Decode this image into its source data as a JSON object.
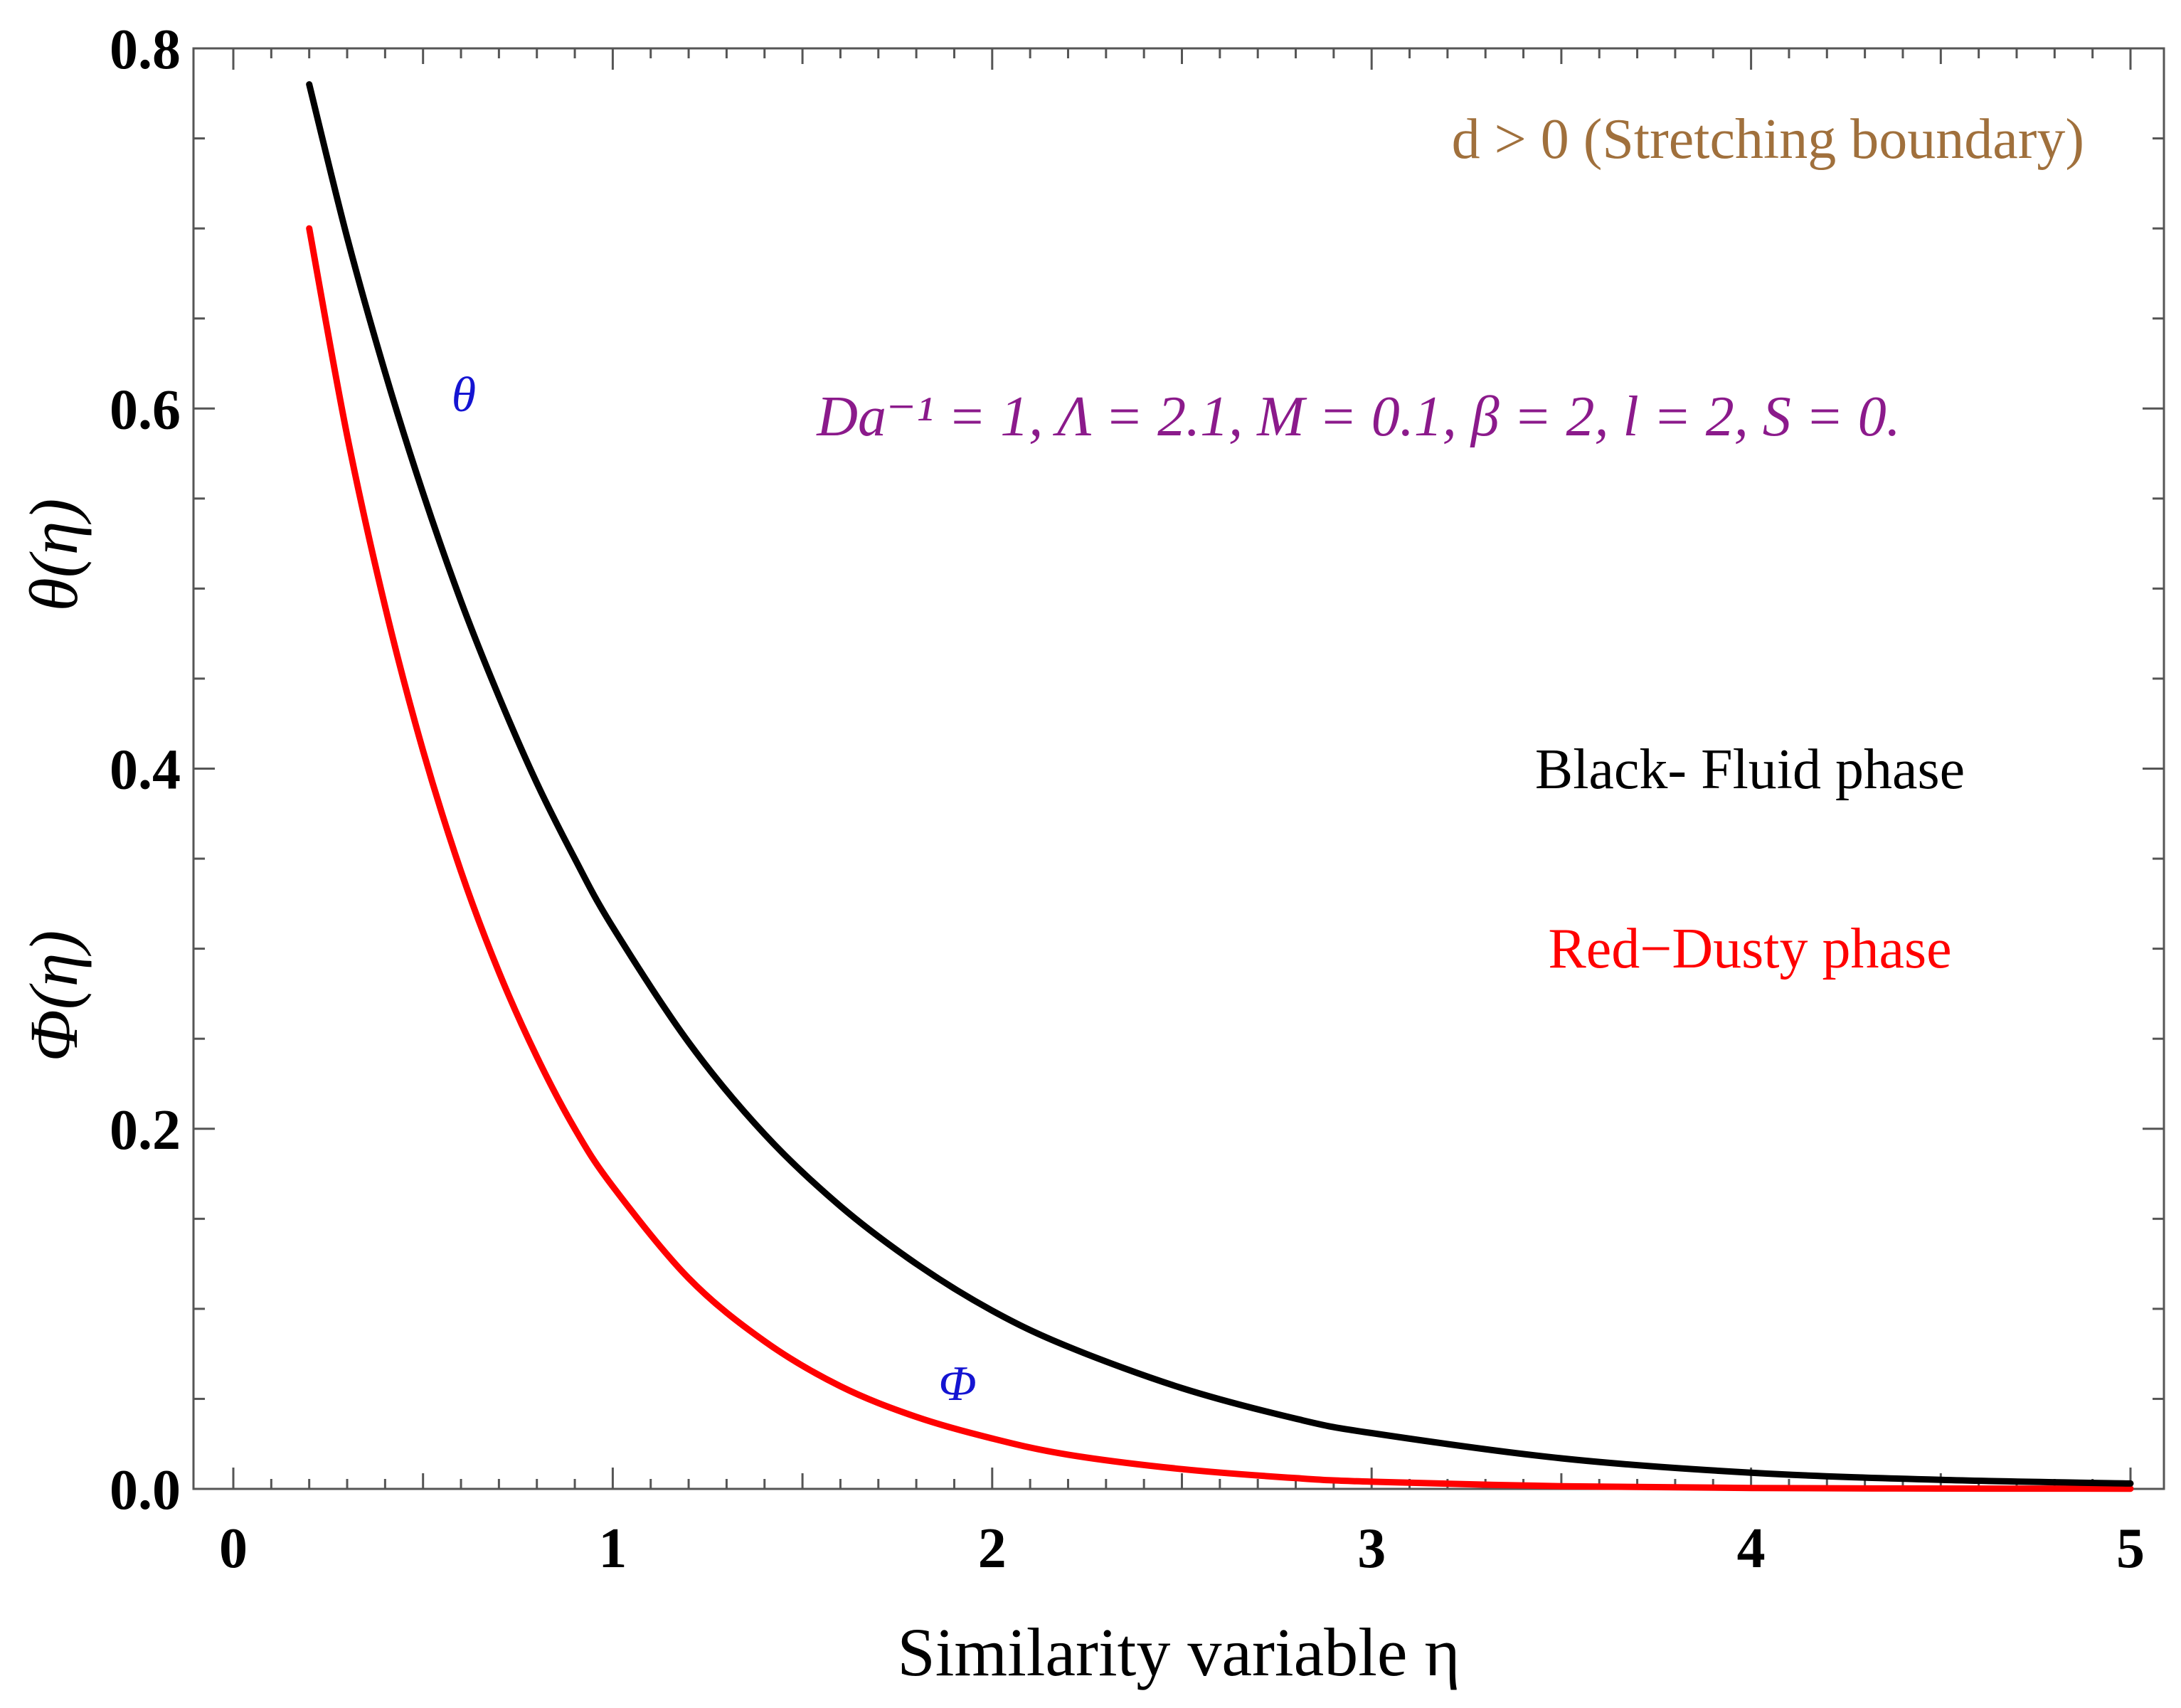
{
  "chart_data": {
    "type": "line",
    "xlabel": "Similarity variable η",
    "ylabel_top": "θ(η)",
    "ylabel_bottom": "Φ(η)",
    "xlim": [
      0,
      5
    ],
    "ylim": [
      0,
      0.8
    ],
    "x_ticks": [
      "0",
      "1",
      "2",
      "3",
      "4",
      "5"
    ],
    "y_ticks": [
      "0.0",
      "0.2",
      "0.4",
      "0.6",
      "0.8"
    ],
    "grid": false,
    "series": [
      {
        "name": "θ",
        "color": "#000000",
        "x": [
          0.2,
          0.3,
          0.4,
          0.5,
          0.6,
          0.7,
          0.8,
          0.9,
          1.0,
          1.2,
          1.4,
          1.6,
          1.8,
          2.0,
          2.2,
          2.5,
          2.8,
          3.0,
          3.5,
          4.0,
          4.5,
          5.0
        ],
        "y": [
          0.78,
          0.695,
          0.62,
          0.553,
          0.493,
          0.44,
          0.392,
          0.35,
          0.312,
          0.248,
          0.197,
          0.157,
          0.125,
          0.099,
          0.079,
          0.056,
          0.039,
          0.031,
          0.017,
          0.009,
          0.005,
          0.003
        ]
      },
      {
        "name": "Φ",
        "color": "#ff0000",
        "x": [
          0.2,
          0.3,
          0.4,
          0.5,
          0.6,
          0.7,
          0.8,
          0.9,
          1.0,
          1.2,
          1.4,
          1.6,
          1.8,
          2.0,
          2.2,
          2.5,
          2.8,
          3.0,
          3.5,
          4.0,
          4.5,
          5.0
        ],
        "y": [
          0.7,
          0.585,
          0.49,
          0.41,
          0.343,
          0.287,
          0.24,
          0.2,
          0.168,
          0.117,
          0.082,
          0.057,
          0.04,
          0.028,
          0.019,
          0.011,
          0.006,
          0.004,
          0.0015,
          0.0005,
          0.0002,
          0.0001
        ]
      }
    ],
    "annotations": {
      "condition": "d > 0 (Stretching boundary)",
      "parameters": "Da⁻¹ = 1, Λ = 2.1, M = 0.1, β = 2, l = 2, S = 0.",
      "theta_label": "θ",
      "phi_label": "Φ",
      "legend_black": "Black- Fluid phase",
      "legend_red": "Red−Dusty phase"
    },
    "colors": {
      "condition": "#a0703c",
      "parameters": "#8b1a8b",
      "curve_labels": "#1414d2",
      "legend_red": "#ff0000",
      "legend_black": "#000000"
    }
  }
}
